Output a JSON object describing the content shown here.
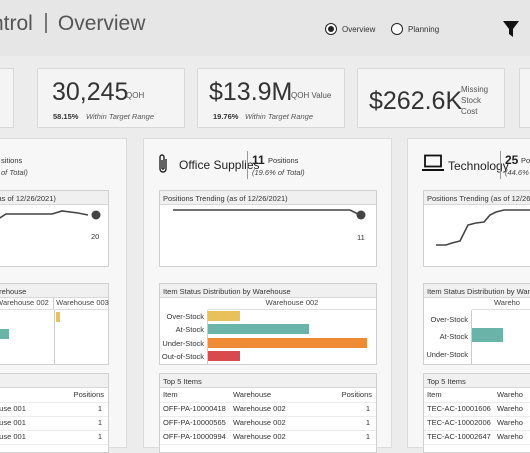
{
  "header": {
    "title_left": "ntrol",
    "title_right": "Overview",
    "radio_overview": "Overview",
    "radio_planning": "Planning"
  },
  "kpis": {
    "qoh_value": "30,245",
    "qoh_unit": "QOH",
    "qoh_pct": "58.15%",
    "qoh_pct_label": "Within Target Range",
    "value_value": "$13.9M",
    "value_unit": "QOH Value",
    "value_pct": "19.76%",
    "value_pct_label": "Within Target Range",
    "missing_value": "$262.6K",
    "missing_unit_1": "Missing",
    "missing_unit_2": "Stock",
    "missing_unit_3": "Cost"
  },
  "left_panel": {
    "count_suffix": "sitions",
    "sub": "of Total)",
    "trend_head": "(as of 12/26/2021)",
    "trend_end": "20",
    "dist_head": "arehouse",
    "col1": "Warehouse 002",
    "col2": "Warehouse 003",
    "top_head": "s",
    "top_col": "Positions",
    "rows": [
      {
        "wh": "ouse 001",
        "pos": "1"
      },
      {
        "wh": "ouse 001",
        "pos": "1"
      },
      {
        "wh": "ouse 001",
        "pos": "1"
      }
    ]
  },
  "center_panel": {
    "title": "Office Supplies",
    "count": "11",
    "count_label": "Positions",
    "sub": "(19.6% of Total)",
    "trend_head": "Positions Trending (as of 12/26/2021)",
    "trend_end": "11",
    "dist_head": "Item Status Distribution by Warehouse",
    "dist_col": "Warehouse 002",
    "statuses": [
      "Over-Stock",
      "At-Stock",
      "Under-Stock",
      "Out-of-Stock"
    ],
    "top_head": "Top 5 Items",
    "top_cols": [
      "Item",
      "Warehouse",
      "Positions"
    ],
    "rows": [
      {
        "item": "OFF-PA-10000418",
        "wh": "Warehouse 002",
        "pos": "1"
      },
      {
        "item": "OFF-PA-10000565",
        "wh": "Warehouse 002",
        "pos": "1"
      },
      {
        "item": "OFF-PA-10000994",
        "wh": "Warehouse 002",
        "pos": "1"
      }
    ]
  },
  "right_panel": {
    "title": "Technology",
    "count": "25",
    "count_label": "Po",
    "sub": "(44.6%",
    "trend_head": "Positions Trending (as of 12/26/2021)",
    "dist_head": "Item Status Distribution by Wareh",
    "dist_col": "Wareho",
    "statuses": [
      "Over-Stock",
      "At-Stock",
      "Under-Stock"
    ],
    "top_head": "Top 5 Items",
    "top_cols": [
      "Item",
      "Wareho"
    ],
    "rows": [
      {
        "item": "TEC-AC-10001606",
        "wh": "Wareho"
      },
      {
        "item": "TEC-AC-10002006",
        "wh": "Wareho"
      },
      {
        "item": "TEC-AC-10002647",
        "wh": "Wareho"
      }
    ]
  },
  "colors": {
    "over_stock": "#e8c15a",
    "at_stock": "#6ab3a8",
    "under_stock": "#ef8a35",
    "out_of_stock": "#d94a4f"
  }
}
